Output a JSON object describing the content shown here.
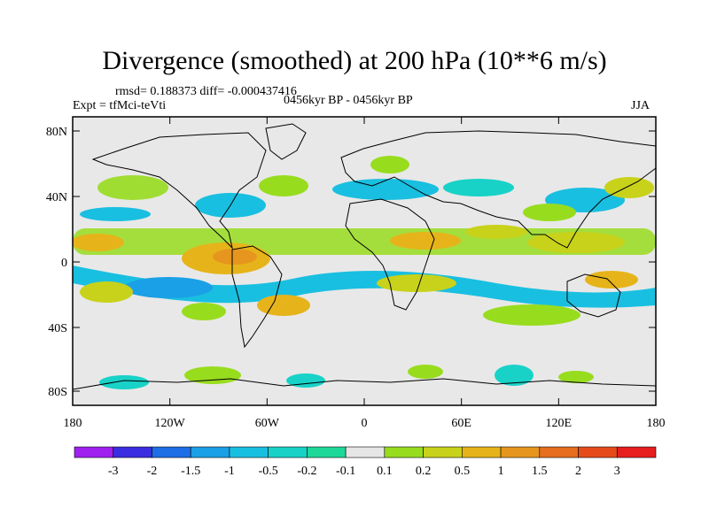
{
  "title": "Divergence (smoothed) at 200 hPa (10**6 m/s)",
  "stats": "rmsd= 0.188373 diff= -0.000437416",
  "experiment": "Expt = tfMci-teVti",
  "period": "0456kyr BP - 0456kyr BP",
  "season": "JJA",
  "axes": {
    "lat_ticks": [
      "80N",
      "40N",
      "0",
      "40S",
      "80S"
    ],
    "lon_ticks": [
      "180",
      "120W",
      "60W",
      "0",
      "60E",
      "120E",
      "180"
    ]
  },
  "colorbar": {
    "labels": [
      "-3",
      "-2",
      "-1.5",
      "-1",
      "-0.5",
      "-0.2",
      "-0.1",
      "0.1",
      "0.2",
      "0.5",
      "1",
      "1.5",
      "2",
      "3"
    ],
    "colors": [
      "#a020f0",
      "#3a2ee0",
      "#1e6ee6",
      "#1aa0e6",
      "#19bfe0",
      "#18d2c8",
      "#1ed89a",
      "#e6e6e6",
      "#98dc1e",
      "#c8d21a",
      "#e6b41a",
      "#e6961e",
      "#e66e1e",
      "#e64a1a",
      "#e61e1e"
    ]
  }
}
